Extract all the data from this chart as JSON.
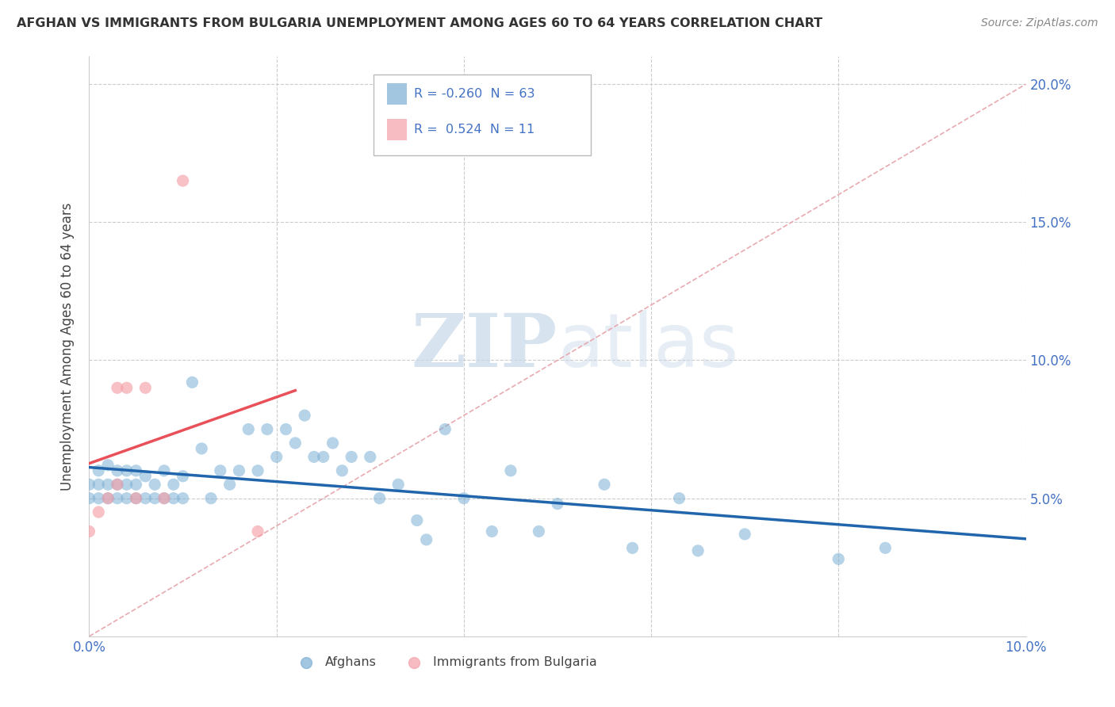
{
  "title": "AFGHAN VS IMMIGRANTS FROM BULGARIA UNEMPLOYMENT AMONG AGES 60 TO 64 YEARS CORRELATION CHART",
  "source": "Source: ZipAtlas.com",
  "ylabel": "Unemployment Among Ages 60 to 64 years",
  "xlim": [
    0.0,
    0.1
  ],
  "ylim": [
    0.0,
    0.21
  ],
  "xticks": [
    0.0,
    0.02,
    0.04,
    0.06,
    0.08,
    0.1
  ],
  "xtick_labels": [
    "0.0%",
    "",
    "",
    "",
    "",
    "10.0%"
  ],
  "yticks": [
    0.0,
    0.05,
    0.1,
    0.15,
    0.2
  ],
  "ytick_labels": [
    "",
    "5.0%",
    "10.0%",
    "15.0%",
    "20.0%"
  ],
  "afghan_color": "#7bafd4",
  "bulgarian_color": "#f4a0a8",
  "afghan_r": -0.26,
  "afghan_n": 63,
  "bulgarian_r": 0.524,
  "bulgarian_n": 11,
  "watermark_zip": "ZIP",
  "watermark_atlas": "atlas",
  "legend_label_1": "Afghans",
  "legend_label_2": "Immigrants from Bulgaria",
  "afghan_scatter_x": [
    0.0,
    0.0,
    0.001,
    0.001,
    0.001,
    0.002,
    0.002,
    0.002,
    0.003,
    0.003,
    0.003,
    0.004,
    0.004,
    0.004,
    0.005,
    0.005,
    0.005,
    0.006,
    0.006,
    0.007,
    0.007,
    0.008,
    0.008,
    0.009,
    0.009,
    0.01,
    0.01,
    0.011,
    0.012,
    0.013,
    0.014,
    0.015,
    0.016,
    0.017,
    0.018,
    0.019,
    0.02,
    0.021,
    0.022,
    0.023,
    0.024,
    0.025,
    0.026,
    0.027,
    0.028,
    0.03,
    0.031,
    0.033,
    0.035,
    0.036,
    0.038,
    0.04,
    0.043,
    0.045,
    0.048,
    0.05,
    0.055,
    0.058,
    0.063,
    0.065,
    0.07,
    0.08,
    0.085
  ],
  "afghan_scatter_y": [
    0.05,
    0.055,
    0.05,
    0.055,
    0.06,
    0.05,
    0.055,
    0.062,
    0.05,
    0.055,
    0.06,
    0.05,
    0.055,
    0.06,
    0.05,
    0.055,
    0.06,
    0.05,
    0.058,
    0.05,
    0.055,
    0.05,
    0.06,
    0.05,
    0.055,
    0.05,
    0.058,
    0.092,
    0.068,
    0.05,
    0.06,
    0.055,
    0.06,
    0.075,
    0.06,
    0.075,
    0.065,
    0.075,
    0.07,
    0.08,
    0.065,
    0.065,
    0.07,
    0.06,
    0.065,
    0.065,
    0.05,
    0.055,
    0.042,
    0.035,
    0.075,
    0.05,
    0.038,
    0.06,
    0.038,
    0.048,
    0.055,
    0.032,
    0.05,
    0.031,
    0.037,
    0.028,
    0.032
  ],
  "bulgarian_scatter_x": [
    0.0,
    0.001,
    0.002,
    0.003,
    0.003,
    0.004,
    0.005,
    0.006,
    0.008,
    0.01,
    0.018
  ],
  "bulgarian_scatter_y": [
    0.038,
    0.045,
    0.05,
    0.055,
    0.09,
    0.09,
    0.05,
    0.09,
    0.05,
    0.165,
    0.038
  ],
  "trendline_color_afghan": "#2166ac",
  "trendline_color_bulgarian": "#e8515a",
  "diagonal_color": "#e8aab0"
}
